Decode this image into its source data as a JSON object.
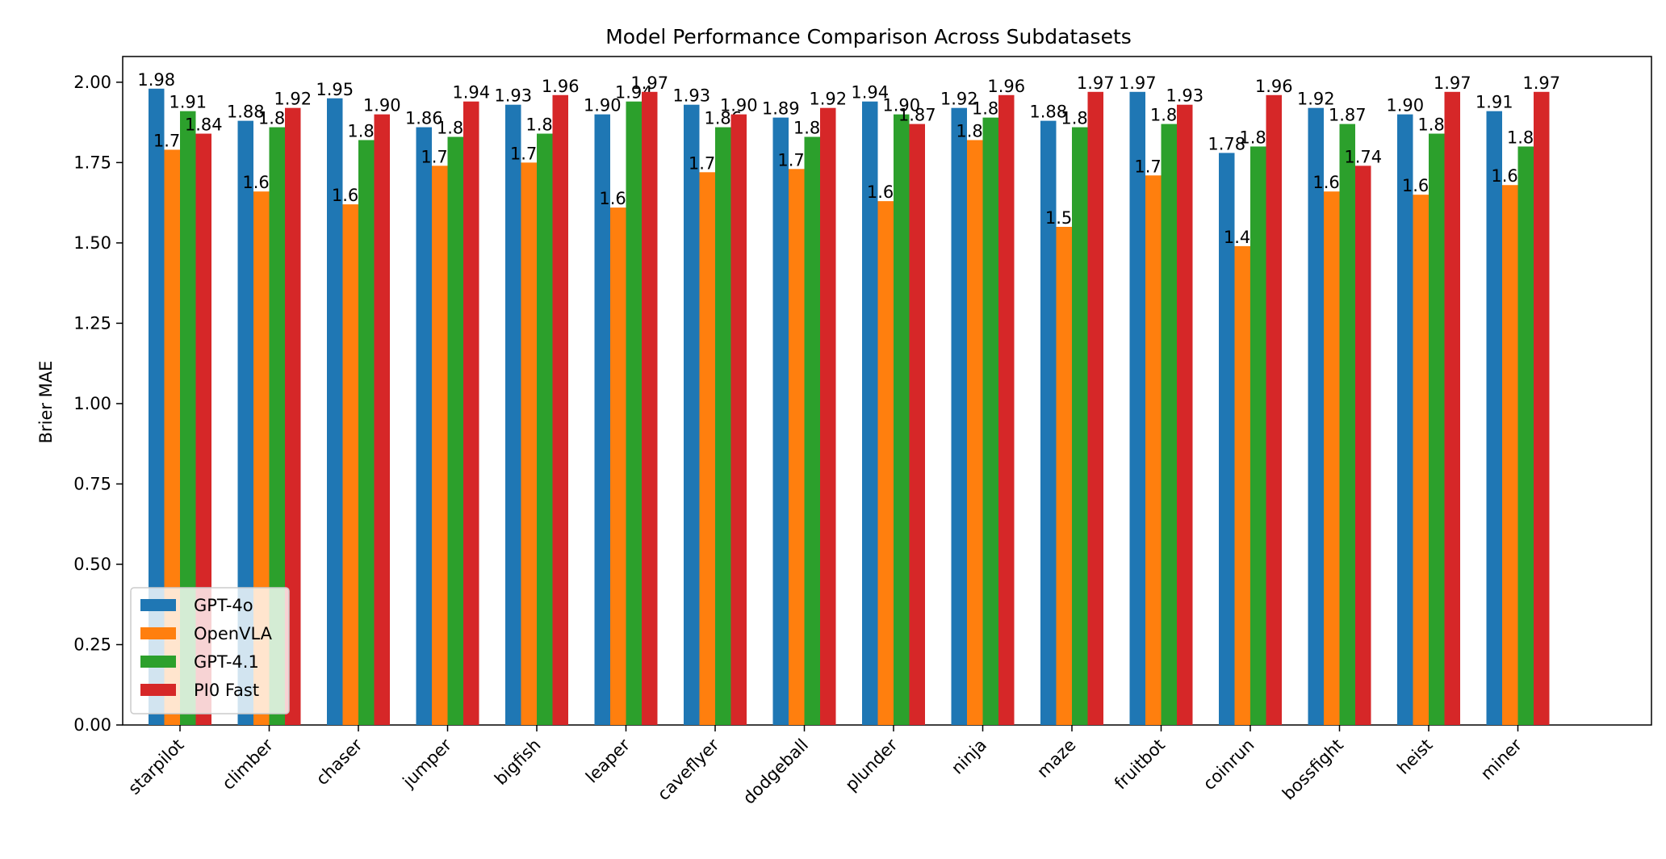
{
  "chart_data": {
    "type": "bar",
    "title": "Model Performance Comparison Across Subdatasets",
    "xlabel": "",
    "ylabel": "Brier MAE",
    "ylim": [
      0,
      2.08
    ],
    "yticks": [
      "0.00",
      "0.25",
      "0.50",
      "0.75",
      "1.00",
      "1.25",
      "1.50",
      "1.75",
      "2.00"
    ],
    "grid": false,
    "legend_position": "lower-left",
    "categories": [
      "starpilot",
      "climber",
      "chaser",
      "jumper",
      "bigfish",
      "leaper",
      "caveflyer",
      "dodgeball",
      "plunder",
      "ninja",
      "maze",
      "fruitbot",
      "coinrun",
      "bossfight",
      "heist",
      "miner"
    ],
    "series": [
      {
        "name": "GPT-4o",
        "color": "#1f77b4",
        "values": [
          1.98,
          1.88,
          1.95,
          1.86,
          1.93,
          1.9,
          1.93,
          1.89,
          1.94,
          1.92,
          1.88,
          1.97,
          1.78,
          1.92,
          1.9,
          1.91
        ]
      },
      {
        "name": "OpenVLA",
        "color": "#ff7f0e",
        "values": [
          1.79,
          1.66,
          1.62,
          1.74,
          1.75,
          1.61,
          1.72,
          1.73,
          1.63,
          1.82,
          1.55,
          1.71,
          1.49,
          1.66,
          1.65,
          1.68
        ]
      },
      {
        "name": "GPT-4.1",
        "color": "#2ca02c",
        "values": [
          1.91,
          1.86,
          1.82,
          1.83,
          1.84,
          1.94,
          1.86,
          1.83,
          1.9,
          1.89,
          1.86,
          1.87,
          1.8,
          1.87,
          1.84,
          1.8
        ]
      },
      {
        "name": "PI0 Fast",
        "color": "#d62728",
        "values": [
          1.84,
          1.92,
          1.9,
          1.94,
          1.96,
          1.97,
          1.9,
          1.92,
          1.87,
          1.96,
          1.97,
          1.93,
          1.96,
          1.74,
          1.97,
          1.97
        ]
      }
    ]
  }
}
